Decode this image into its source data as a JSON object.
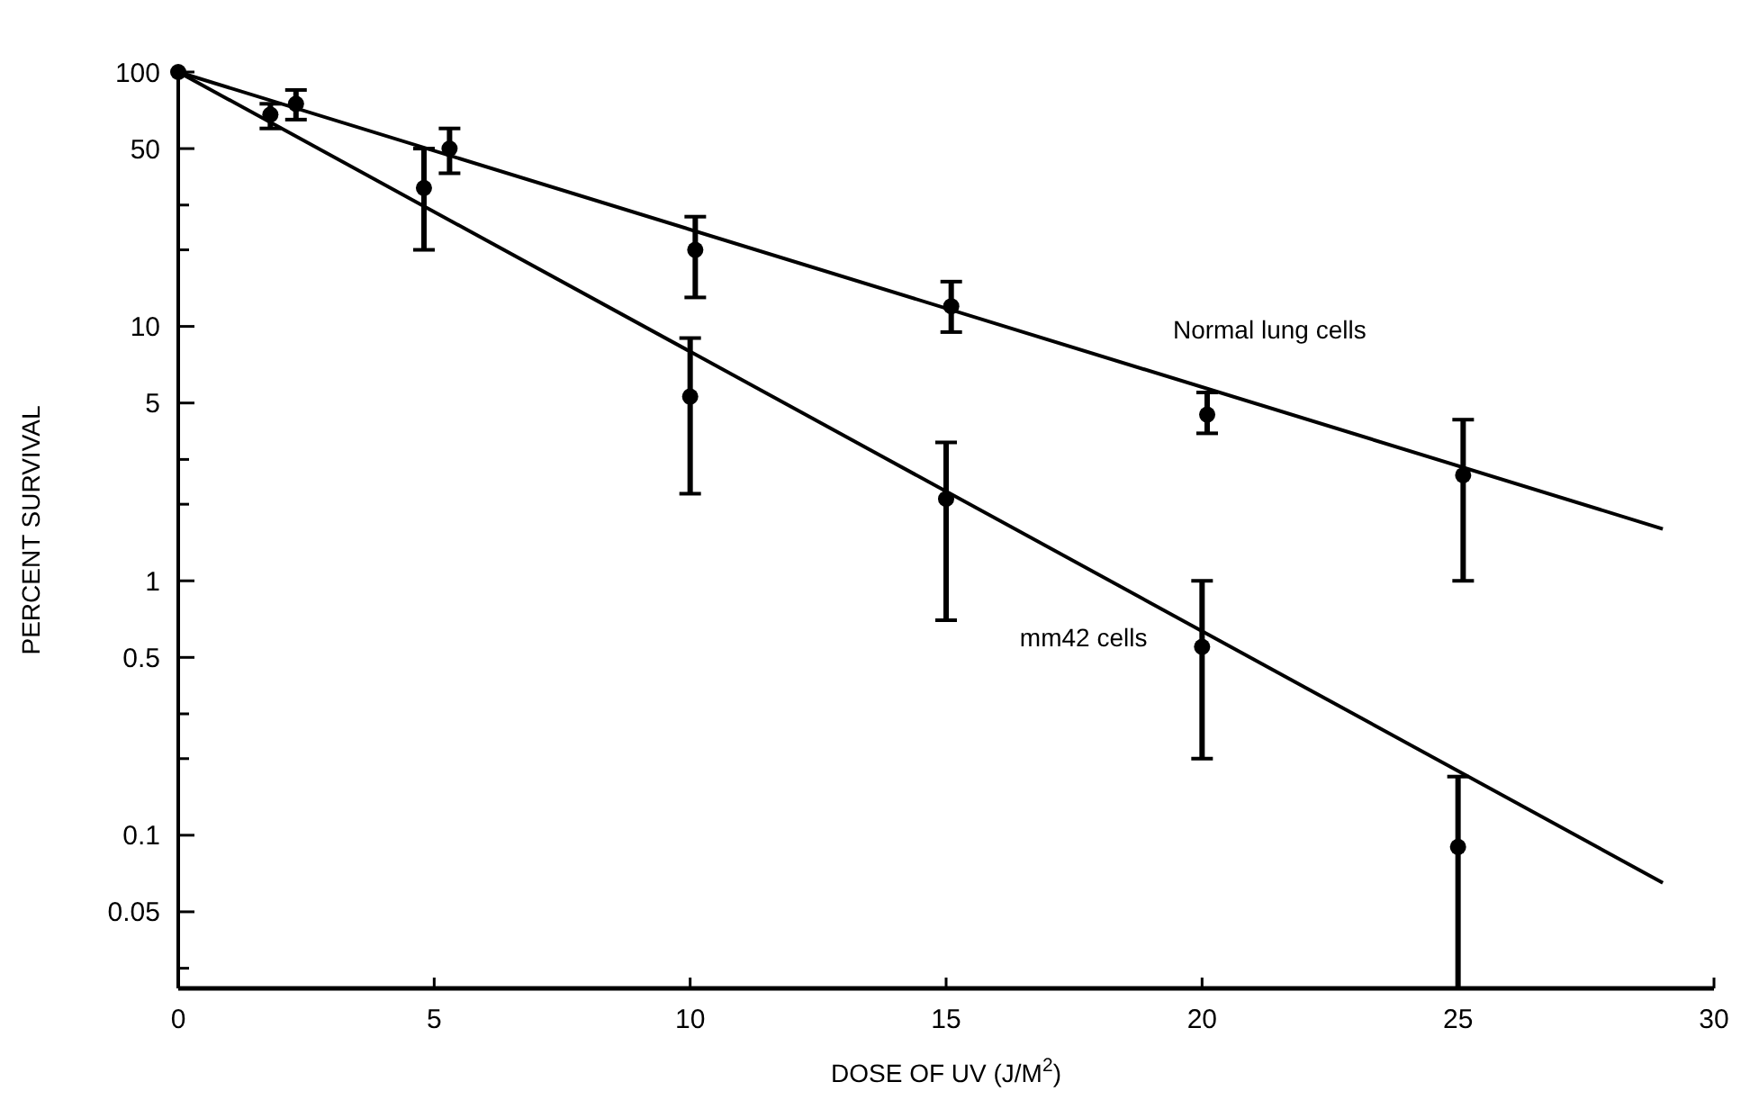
{
  "chart_data": {
    "type": "scatter",
    "xlabel": "DOSE OF UV (J/M$^{2}$)",
    "ylabel": "PERCENT SURVIVAL",
    "log": "y",
    "grid": false,
    "marker": "circle",
    "xlim": [
      0,
      30
    ],
    "xticks": [
      0,
      5,
      10,
      15,
      20,
      25,
      30
    ],
    "ylim": [
      0.025,
      100
    ],
    "yticks": [
      100,
      50,
      {
        "value": 30,
        "label": null
      },
      {
        "value": 20,
        "label": null
      },
      10,
      5,
      {
        "value": 3,
        "label": null
      },
      {
        "value": 2,
        "label": null
      },
      1,
      0.5,
      {
        "value": 0.3,
        "label": null
      },
      {
        "value": 0.2,
        "label": null
      },
      0.1,
      0.05,
      {
        "value": 0.03,
        "label": null
      }
    ],
    "series": [
      {
        "color": "#000000",
        "x": [
          0,
          2.3,
          5.3,
          10.1,
          15.1,
          20.1,
          25.1
        ],
        "values": [
          100,
          75,
          50,
          20,
          12,
          4.5,
          2.6
        ],
        "errors": [
          null,
          [
            65,
            85
          ],
          [
            40,
            60
          ],
          [
            13,
            27
          ],
          [
            9.5,
            15
          ],
          [
            3.8,
            5.5
          ],
          [
            1,
            4.3
          ]
        ]
      },
      {
        "color": "#000000",
        "x": [
          1.8,
          4.8,
          10,
          15,
          20,
          25
        ],
        "values": [
          68,
          35,
          5.3,
          2.1,
          0.55,
          0.09
        ],
        "errors": [
          [
            60,
            75
          ],
          [
            20,
            50
          ],
          [
            2.2,
            9
          ],
          [
            0.7,
            3.5
          ],
          [
            0.2,
            1
          ],
          [
            0.025,
            0.17
          ]
        ]
      },
      {
        "type": "line",
        "name": "Normal lung cells",
        "marker": "none",
        "color": "#000000",
        "x": [
          0,
          29
        ],
        "values": [
          100,
          1.6
        ]
      },
      {
        "type": "line",
        "name": "mm42 cells",
        "marker": "none",
        "color": "#000000",
        "x": [
          0,
          29
        ],
        "values": [
          100,
          0.065
        ]
      }
    ]
  }
}
